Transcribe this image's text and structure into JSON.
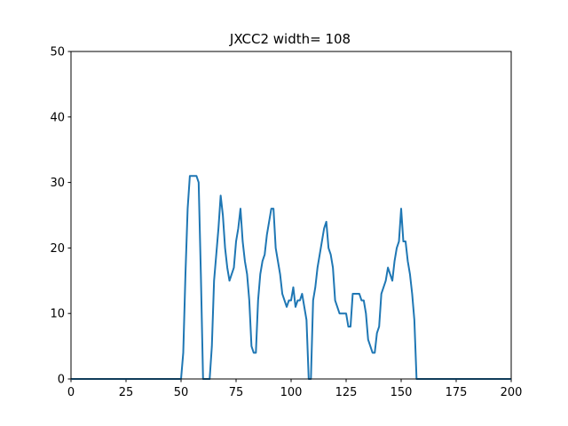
{
  "chart_data": {
    "type": "line",
    "title": "JXCC2 width= 108",
    "xlabel": "",
    "ylabel": "",
    "xlim": [
      0,
      200
    ],
    "ylim": [
      0,
      50
    ],
    "xticks": [
      0,
      25,
      50,
      75,
      100,
      125,
      150,
      175,
      200
    ],
    "yticks": [
      0,
      10,
      20,
      30,
      40,
      50
    ],
    "grid": false,
    "line_color": "#1f77b4",
    "series": [
      {
        "x": [
          0,
          49,
          50,
          51,
          52,
          53,
          54,
          55,
          56,
          57,
          58,
          59,
          60,
          61,
          62,
          63,
          64,
          65,
          66,
          67,
          68,
          69,
          70,
          71,
          72,
          73,
          74,
          75,
          76,
          77,
          78,
          79,
          80,
          81,
          82,
          83,
          84,
          85,
          86,
          87,
          88,
          89,
          90,
          91,
          92,
          93,
          94,
          95,
          96,
          97,
          98,
          99,
          100,
          101,
          102,
          103,
          104,
          105,
          106,
          107,
          108,
          109,
          110,
          111,
          112,
          113,
          114,
          115,
          116,
          117,
          118,
          119,
          120,
          121,
          122,
          123,
          124,
          125,
          126,
          127,
          128,
          129,
          130,
          131,
          132,
          133,
          134,
          135,
          136,
          137,
          138,
          139,
          140,
          141,
          142,
          143,
          144,
          145,
          146,
          147,
          148,
          149,
          150,
          151,
          152,
          153,
          154,
          155,
          156,
          157,
          158,
          159,
          160,
          200
        ],
        "y": [
          0,
          0,
          0,
          4,
          16,
          26,
          31,
          31,
          31,
          31,
          30,
          16,
          0,
          0,
          0,
          0,
          5,
          15,
          19,
          23,
          28,
          25,
          20,
          17,
          15,
          16,
          17,
          21,
          23,
          26,
          21,
          18,
          16,
          12,
          5,
          4,
          4,
          12,
          16,
          18,
          19,
          22,
          24,
          26,
          26,
          20,
          18,
          16,
          13,
          12,
          11,
          12,
          12,
          14,
          11,
          12,
          12,
          13,
          11,
          9,
          0,
          0,
          12,
          14,
          17,
          19,
          21,
          23,
          24,
          20,
          19,
          17,
          12,
          11,
          10,
          10,
          10,
          10,
          8,
          8,
          13,
          13,
          13,
          13,
          12,
          12,
          10,
          6,
          5,
          4,
          4,
          7,
          8,
          13,
          14,
          15,
          17,
          16,
          15,
          18,
          20,
          21,
          26,
          21,
          21,
          18,
          16,
          13,
          9,
          0,
          0,
          0,
          0,
          0
        ]
      }
    ]
  }
}
